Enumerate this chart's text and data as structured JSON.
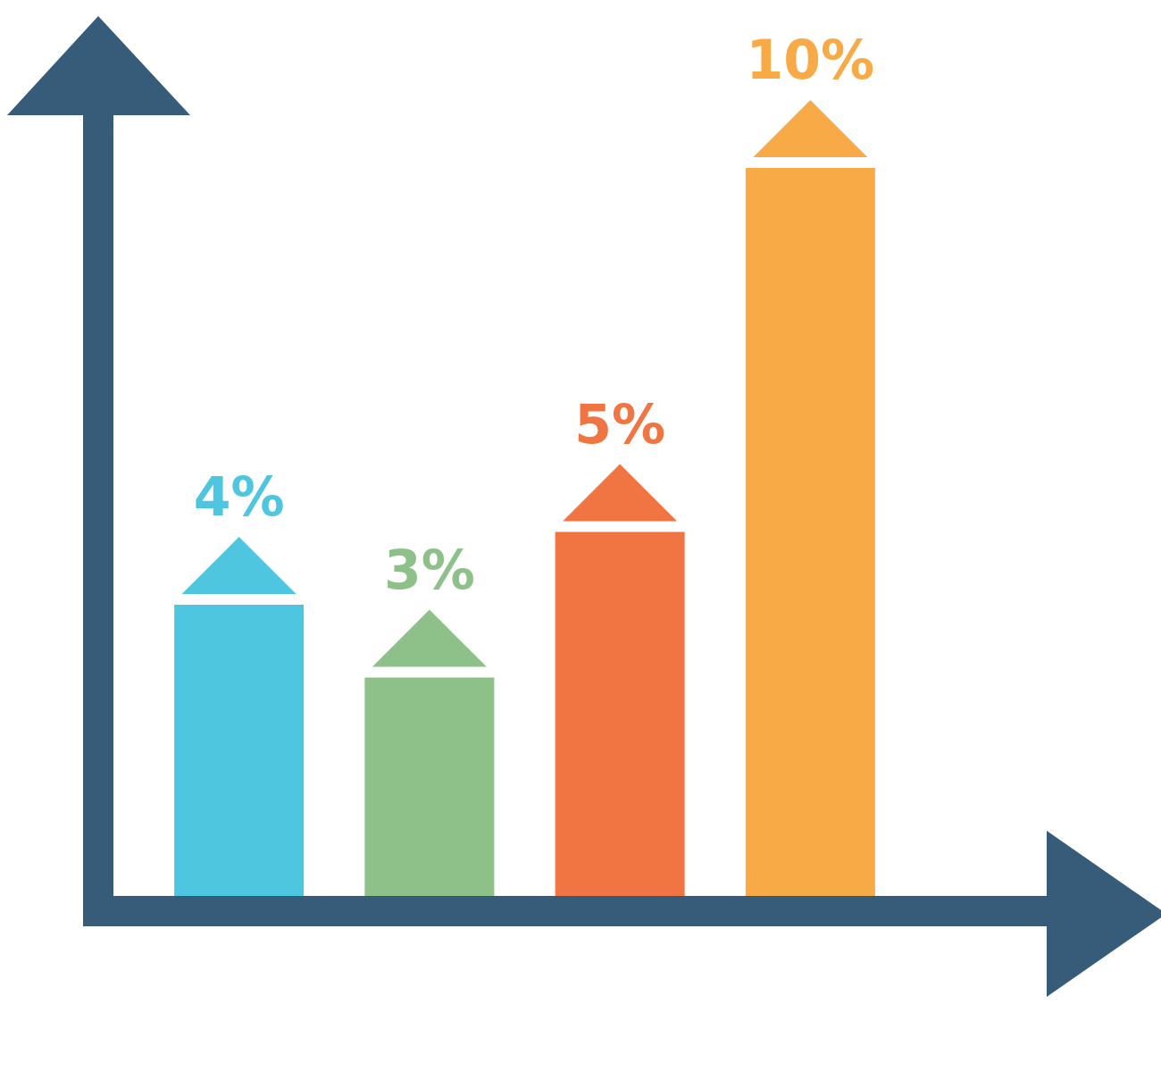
{
  "chart_data": {
    "type": "bar",
    "categories": [
      null,
      null,
      null,
      null
    ],
    "values": [
      4,
      3,
      5,
      10
    ],
    "colors": [
      "#4fc6e0",
      "#8dc189",
      "#f07542",
      "#f7aa45"
    ],
    "value_labels": [
      "4%",
      "3%",
      "5%",
      "10%"
    ]
  }
}
